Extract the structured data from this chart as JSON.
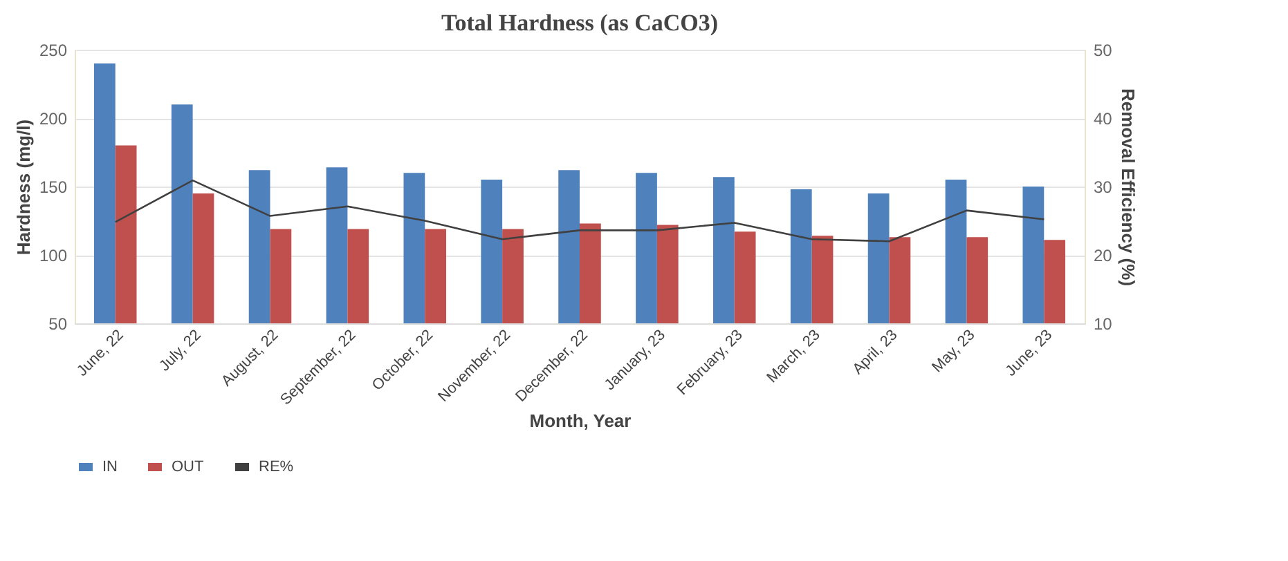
{
  "chart_data": {
    "type": "bar",
    "title": "Total Hardness (as CaCO3)",
    "xlabel": "Month, Year",
    "ylabel": "Hardness (mg/l)",
    "y2label": "Removal Efficiency (%)",
    "categories": [
      "June, 22",
      "July, 22",
      "August, 22",
      "September, 22",
      "October, 22",
      "November, 22",
      "December, 22",
      "January, 23",
      "February, 23",
      "March, 23",
      "April, 23",
      "May, 23",
      "June, 23"
    ],
    "series": [
      {
        "name": "IN",
        "color": "#4f81bd",
        "values": [
          240,
          210,
          162,
          164,
          160,
          155,
          162,
          160,
          157,
          148,
          145,
          155,
          150
        ]
      },
      {
        "name": "OUT",
        "color": "#c0504d",
        "values": [
          180,
          145,
          119,
          119,
          119,
          119,
          123,
          122,
          117,
          114,
          113,
          113,
          111
        ]
      },
      {
        "name": "RE%",
        "type": "line",
        "axis": "y2",
        "color": "#404040",
        "values": [
          24.8,
          30.9,
          25.7,
          27.1,
          25.0,
          22.3,
          23.6,
          23.6,
          24.7,
          22.3,
          22.0,
          26.5,
          25.2
        ]
      }
    ],
    "ylim": [
      50,
      250
    ],
    "yticks": [
      50,
      100,
      150,
      200,
      250
    ],
    "y2lim": [
      10,
      50
    ],
    "y2ticks": [
      10,
      20,
      30,
      40,
      50
    ],
    "grid": "y",
    "legend": "bottom",
    "marker": "none"
  }
}
